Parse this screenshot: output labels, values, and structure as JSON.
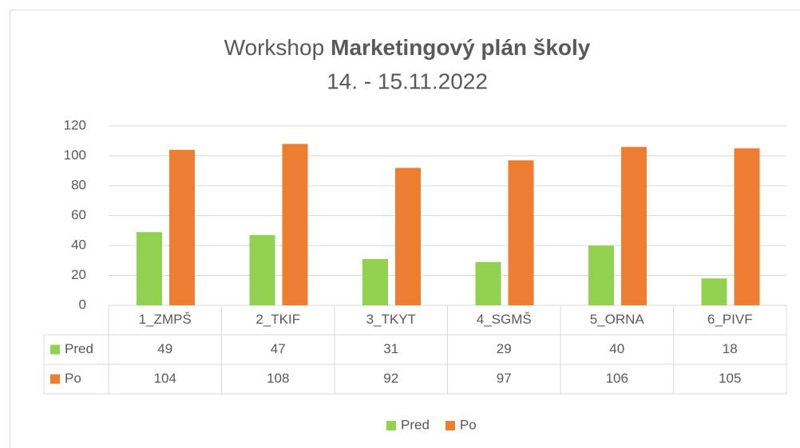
{
  "chart_data": {
    "type": "bar",
    "title": [
      "Workshop",
      "Marketingový plán školy"
    ],
    "subtitle": "14. - 15.11.2022",
    "categories": [
      "1_ZMPŠ",
      "2_TKIF",
      "3_TKYT",
      "4_SGMŠ",
      "5_ORNA",
      "6_PIVF"
    ],
    "series": [
      {
        "name": "Pred",
        "color": "#92d050",
        "values": [
          49,
          47,
          31,
          29,
          40,
          18
        ]
      },
      {
        "name": "Po",
        "color": "#ed7d31",
        "values": [
          104,
          108,
          92,
          97,
          106,
          105
        ]
      }
    ],
    "ylim": [
      0,
      120
    ],
    "yticks": [
      0,
      20,
      40,
      60,
      80,
      100,
      120
    ],
    "grid": true,
    "data_table": true,
    "legend": "bottom"
  }
}
